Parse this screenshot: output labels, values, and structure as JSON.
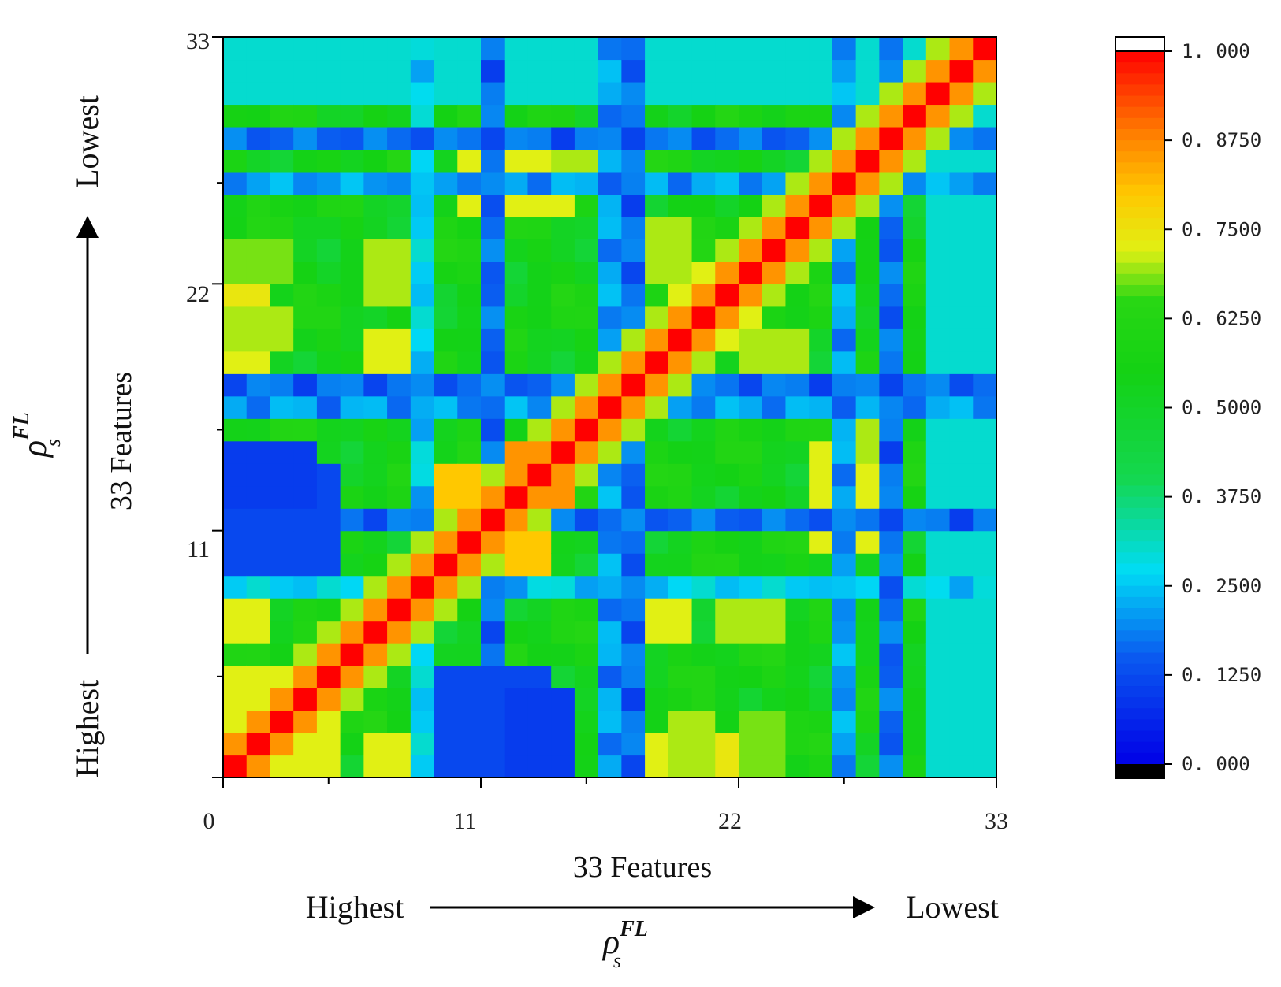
{
  "chart_data": {
    "type": "heatmap",
    "n": 33,
    "xlabel": "33 Features",
    "ylabel": "33 Features",
    "x_ticks": [
      "0",
      "11",
      "22",
      "33"
    ],
    "y_ticks": [
      "11",
      "22",
      "33"
    ],
    "x_rank": {
      "start": "Highest",
      "end": "Lowest"
    },
    "y_rank": {
      "start": "Highest",
      "end": "Lowest"
    },
    "rank_metric": {
      "symbol": "ρ",
      "sup": "FL",
      "sub": "s"
    },
    "colorbar": {
      "ticks": [
        "1. 000",
        "0. 8750",
        "0. 7500",
        "0. 6250",
        "0. 5000",
        "0. 3750",
        "0. 2500",
        "0. 1250",
        "0. 000"
      ],
      "range": [
        0,
        1
      ]
    },
    "colors": {
      "low": "#0000e0",
      "mid_low": "#00e0f0",
      "mid": "#10d010",
      "mid_high": "#f8f000",
      "high": "#ff0000"
    },
    "blocks": [
      {
        "x": [
          1,
          5
        ],
        "y": [
          1,
          5
        ],
        "value": 0.72
      },
      {
        "x": [
          13,
          15
        ],
        "y": [
          13,
          15
        ],
        "value": 0.86
      },
      {
        "x": [
          10,
          11
        ],
        "y": [
          13,
          14
        ],
        "value": 0.8
      },
      {
        "x": [
          13,
          14
        ],
        "y": [
          10,
          11
        ],
        "value": 0.8
      },
      {
        "x": [
          1,
          5
        ],
        "y": [
          11,
          14
        ],
        "value": 0.12
      },
      {
        "x": [
          10,
          11
        ],
        "y": [
          1,
          5
        ],
        "value": 0.12
      },
      {
        "x": [
          13,
          15
        ],
        "y": [
          1,
          4
        ],
        "value": 0.1
      },
      {
        "x": [
          1,
          2
        ],
        "y": [
          7,
          8
        ],
        "value": 0.72
      },
      {
        "x": [
          1,
          2
        ],
        "y": [
          18,
          20
        ],
        "value": 0.72
      },
      {
        "x": [
          1,
          2
        ],
        "y": [
          22,
          24
        ],
        "value": 0.74
      },
      {
        "x": [
          7,
          8
        ],
        "y": [
          22,
          24
        ],
        "value": 0.7
      },
      {
        "x": [
          7,
          8
        ],
        "y": [
          18,
          20
        ],
        "value": 0.72
      },
      {
        "x": [
          26,
          28
        ],
        "y": [
          11,
          15
        ],
        "value": 0.72
      },
      {
        "x": [
          20,
          21
        ],
        "y": [
          1,
          3
        ],
        "value": 0.7
      },
      {
        "x": [
          23,
          24
        ],
        "y": [
          1,
          3
        ],
        "value": 0.68
      },
      {
        "x": [
          21,
          23
        ],
        "y": [
          20,
          22
        ],
        "value": 0.72
      },
      {
        "x": [
          19,
          20
        ],
        "y": [
          23,
          25
        ],
        "value": 0.7
      },
      {
        "x": [
          15,
          17
        ],
        "y": [
          27,
          29
        ],
        "value": 0.7
      },
      {
        "x": [
          1,
          33
        ],
        "y": [
          31,
          33
        ],
        "value": 0.3
      }
    ],
    "lines": [
      {
        "axis": "x",
        "index": 9,
        "value": 0.2
      },
      {
        "axis": "x",
        "index": 12,
        "value": 0.1
      },
      {
        "axis": "x",
        "index": 18,
        "value": 0.1
      },
      {
        "axis": "x",
        "index": 29,
        "value": 0.1
      },
      {
        "axis": "y",
        "index": 12,
        "value": 0.15
      },
      {
        "axis": "y",
        "index": 17,
        "value": 0.15
      },
      {
        "axis": "y",
        "index": 27,
        "value": 0.15
      }
    ]
  }
}
